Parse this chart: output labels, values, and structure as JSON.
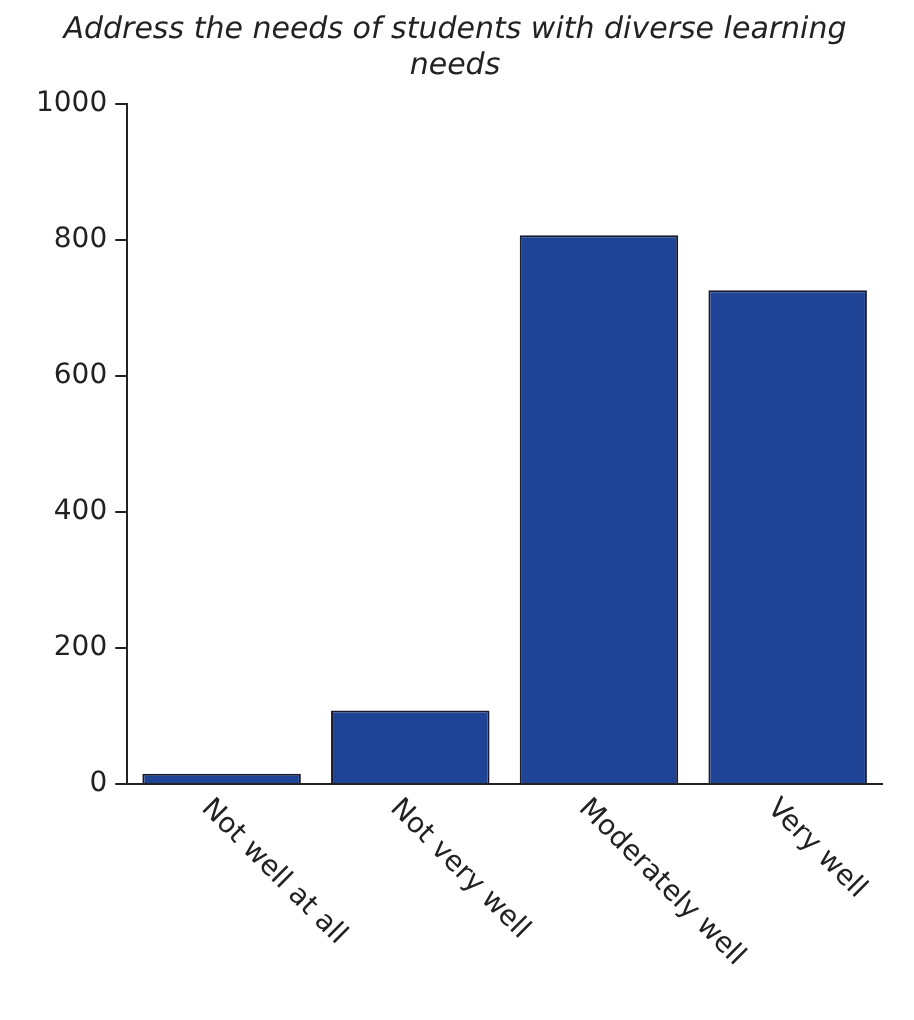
{
  "chart_data": {
    "type": "bar",
    "title": "Address the needs of students with diverse learning needs",
    "categories": [
      "Not well at all",
      "Not very well",
      "Moderately well",
      "Very well"
    ],
    "values": [
      15,
      108,
      807,
      726
    ],
    "color": "#1f4496",
    "ylim": [
      0,
      1000
    ],
    "yticks": [
      0,
      200,
      400,
      600,
      800,
      1000
    ],
    "grid": false,
    "legend": false
  }
}
